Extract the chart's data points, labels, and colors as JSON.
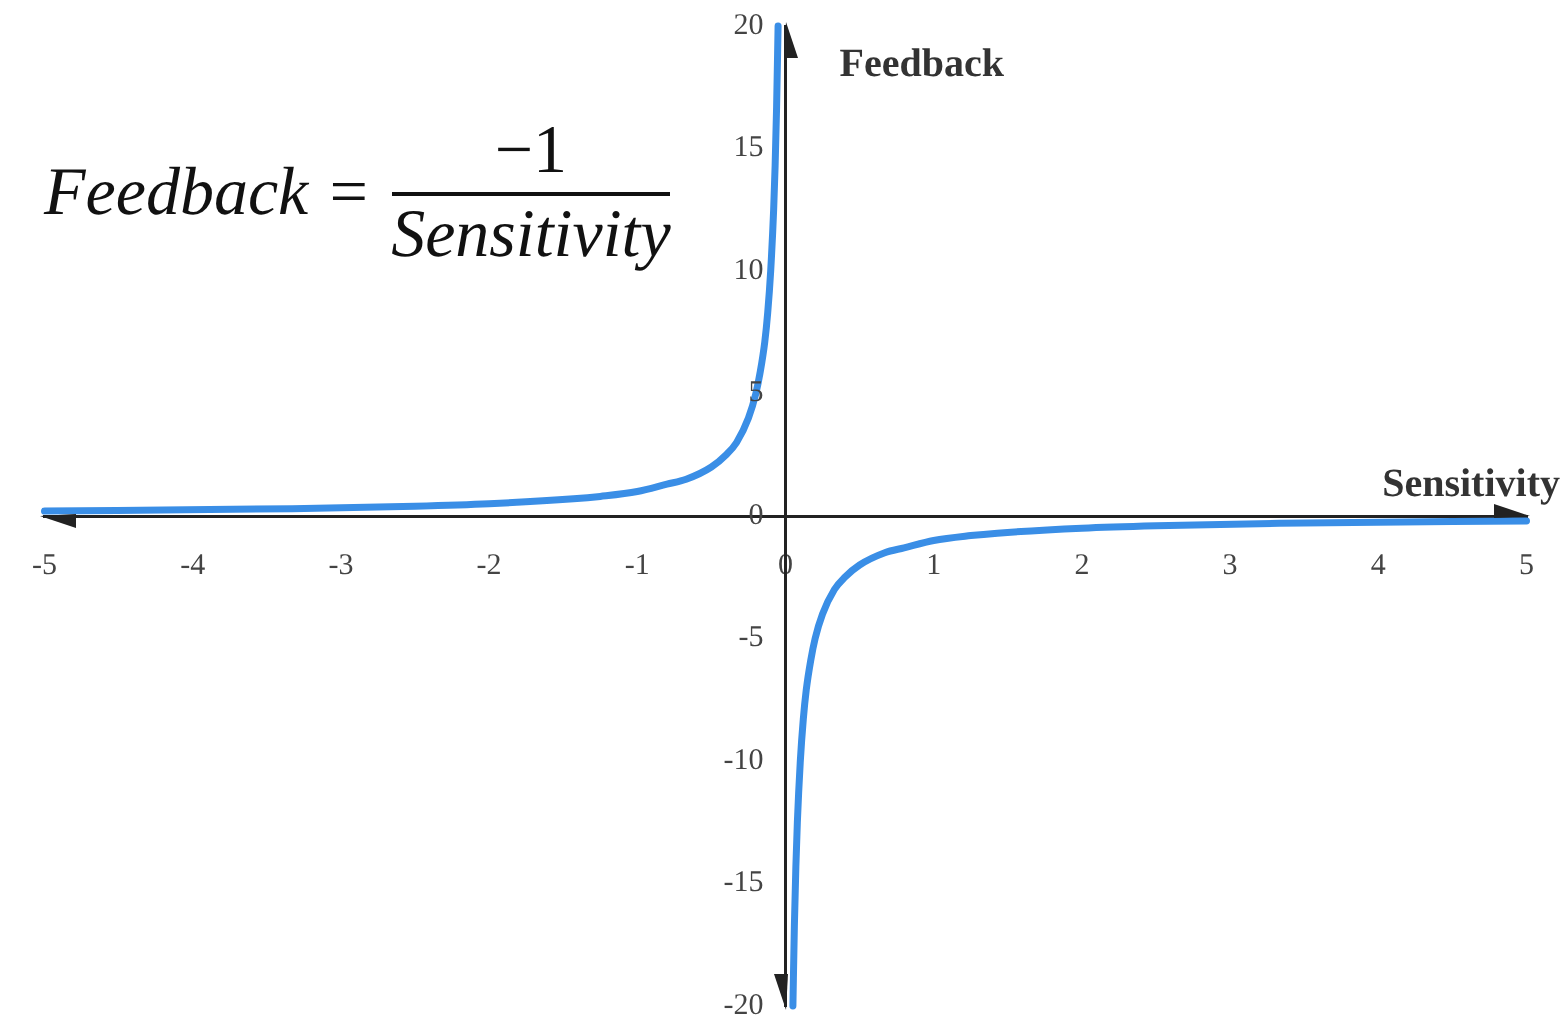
{
  "chart_data": {
    "type": "line",
    "annotations": [
      "Feedback =",
      "−1",
      "Sensitivity"
    ],
    "xlabel": "Sensitivity",
    "ylabel": "Feedback",
    "series": [
      {
        "color": "#3a8ee6",
        "x": [
          -5,
          -3.33,
          -2.5,
          -2,
          -1.43,
          -1.25,
          -1,
          -0.8,
          -0.67,
          -0.5,
          -0.4,
          -0.33,
          -0.25,
          -0.2,
          -0.17,
          -0.14,
          -0.12,
          -0.1,
          -0.08,
          -0.07,
          -0.06,
          -0.05
        ],
        "values": [
          0.2,
          0.3,
          0.4,
          0.5,
          0.7,
          0.8,
          1,
          1.3,
          1.5,
          2,
          2.5,
          3,
          4,
          5,
          5.9,
          7.1,
          8.3,
          10,
          12.5,
          14.3,
          16.7,
          20
        ]
      },
      {
        "color": "#3a8ee6",
        "x": [
          0.05,
          0.06,
          0.07,
          0.08,
          0.1,
          0.12,
          0.14,
          0.17,
          0.2,
          0.25,
          0.33,
          0.4,
          0.5,
          0.67,
          0.8,
          1,
          1.25,
          1.43,
          2,
          2.5,
          3.33,
          5
        ],
        "values": [
          -20,
          -16.7,
          -14.3,
          -12.5,
          -10,
          -8.3,
          -7.1,
          -5.9,
          -5,
          -4,
          -3,
          -2.5,
          -2,
          -1.5,
          -1.3,
          -1,
          -0.8,
          -0.7,
          -0.5,
          -0.4,
          -0.3,
          -0.2
        ]
      }
    ],
    "xlim": [
      -5,
      5
    ],
    "ylim": [
      -20,
      20
    ],
    "xticks": [
      -5,
      -4,
      -3,
      -2,
      -1,
      0,
      1,
      2,
      3,
      4,
      5
    ],
    "yticks": [
      -20,
      -15,
      -10,
      -5,
      0,
      5,
      10,
      15,
      20
    ],
    "grid": false,
    "legend": false,
    "marker": "none"
  }
}
